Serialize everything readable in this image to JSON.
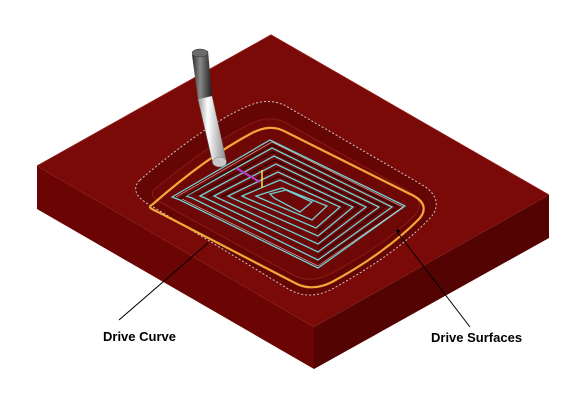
{
  "labels": {
    "drive_curve": "Drive Curve",
    "drive_surfaces": "Drive Surfaces"
  },
  "colors": {
    "block_top": "#7a0a08",
    "block_front": "#6a0503",
    "block_right": "#520302",
    "pocket_floor": "#6e0806",
    "drive_curve": "#f3a738",
    "toolpath": "#6fd1d6",
    "tool_shank": "#e8e8e8",
    "tool_tip": "#555555"
  },
  "icons": {
    "tool": "ball-end-mill"
  }
}
